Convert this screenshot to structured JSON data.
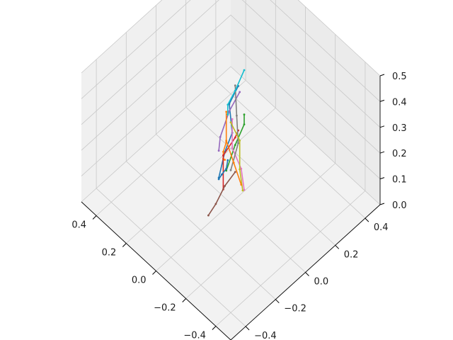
{
  "chart_data": {
    "type": "line",
    "projection": "3d",
    "title": "",
    "xlabel": "",
    "ylabel": "",
    "zlabel": "",
    "grid": true,
    "pane_color": "#f2f2f2",
    "grid_color": "#c8c8c8",
    "axis_color": "#000000",
    "xlim": [
      -0.5,
      0.5
    ],
    "ylim": [
      -0.5,
      0.5
    ],
    "zlim": [
      0.0,
      0.5
    ],
    "x_ticks": [
      "−0.4",
      "−0.2",
      "0.0",
      "0.2",
      "0.4"
    ],
    "x_tick_values": [
      -0.4,
      -0.2,
      0.0,
      0.2,
      0.4
    ],
    "y_ticks": [
      "−0.4",
      "−0.2",
      "0.0",
      "0.2",
      "0.4"
    ],
    "y_tick_values": [
      -0.4,
      -0.2,
      0.0,
      0.2,
      0.4
    ],
    "z_ticks": [
      "0.0",
      "0.1",
      "0.2",
      "0.3",
      "0.4",
      "0.5"
    ],
    "z_tick_values": [
      0.0,
      0.1,
      0.2,
      0.3,
      0.4,
      0.5
    ],
    "series_colors": [
      "#1f77b4",
      "#ff7f0e",
      "#2ca02c",
      "#d62728",
      "#9467bd",
      "#8c564b",
      "#e377c2",
      "#7f7f7f",
      "#bcbd22",
      "#17becf"
    ],
    "series": [
      {
        "points": [
          [
            -0.02,
            0.03,
            0.45
          ],
          [
            0.01,
            0.0,
            0.38
          ],
          [
            -0.03,
            -0.02,
            0.3
          ],
          [
            0.0,
            -0.04,
            0.22
          ],
          [
            0.02,
            -0.06,
            0.12
          ]
        ]
      },
      {
        "points": [
          [
            0.05,
            0.02,
            0.2
          ],
          [
            0.1,
            0.05,
            0.12
          ],
          [
            0.14,
            0.09,
            0.05
          ],
          [
            0.16,
            0.12,
            0.02
          ]
        ]
      },
      {
        "points": [
          [
            -0.05,
            0.04,
            0.35
          ],
          [
            -0.02,
            0.07,
            0.28
          ],
          [
            0.01,
            0.04,
            0.2
          ],
          [
            0.04,
            0.01,
            0.1
          ]
        ]
      },
      {
        "points": [
          [
            -0.06,
            -0.01,
            0.32
          ],
          [
            -0.01,
            0.02,
            0.25
          ],
          [
            0.03,
            -0.02,
            0.18
          ],
          [
            0.0,
            -0.05,
            0.08
          ]
        ]
      },
      {
        "points": [
          [
            0.0,
            0.06,
            0.4
          ],
          [
            0.04,
            0.03,
            0.32
          ],
          [
            0.07,
            0.0,
            0.22
          ],
          [
            0.1,
            0.02,
            0.14
          ]
        ]
      },
      {
        "points": [
          [
            -0.07,
            -0.04,
            0.18
          ],
          [
            -0.03,
            -0.07,
            0.12
          ],
          [
            0.0,
            -0.1,
            0.05
          ],
          [
            0.03,
            -0.12,
            0.0
          ]
        ]
      },
      {
        "points": [
          [
            -0.09,
            0.0,
            0.1
          ],
          [
            -0.05,
            0.02,
            0.15
          ],
          [
            -0.01,
            0.0,
            0.22
          ],
          [
            0.02,
            0.03,
            0.3
          ]
        ]
      },
      {
        "points": [
          [
            0.02,
            0.05,
            0.42
          ],
          [
            -0.02,
            0.02,
            0.34
          ],
          [
            -0.05,
            0.0,
            0.26
          ],
          [
            -0.03,
            -0.03,
            0.16
          ]
        ]
      },
      {
        "points": [
          [
            0.06,
            0.06,
            0.25
          ],
          [
            0.03,
            0.09,
            0.18
          ],
          [
            0.0,
            0.06,
            0.1
          ],
          [
            -0.04,
            0.04,
            0.05
          ]
        ]
      },
      {
        "points": [
          [
            -0.01,
            0.08,
            0.48
          ],
          [
            0.02,
            0.05,
            0.4
          ],
          [
            0.05,
            0.03,
            0.34
          ],
          [
            0.08,
            0.06,
            0.27
          ]
        ]
      },
      {
        "points": [
          [
            -0.04,
            -0.06,
            0.22
          ],
          [
            0.0,
            -0.03,
            0.15
          ],
          [
            0.05,
            -0.01,
            0.09
          ],
          [
            0.09,
            0.01,
            0.04
          ]
        ]
      },
      {
        "points": [
          [
            0.01,
            -0.02,
            0.36
          ],
          [
            -0.02,
            -0.05,
            0.28
          ],
          [
            -0.05,
            -0.03,
            0.2
          ],
          [
            -0.08,
            -0.01,
            0.12
          ]
        ]
      }
    ]
  }
}
